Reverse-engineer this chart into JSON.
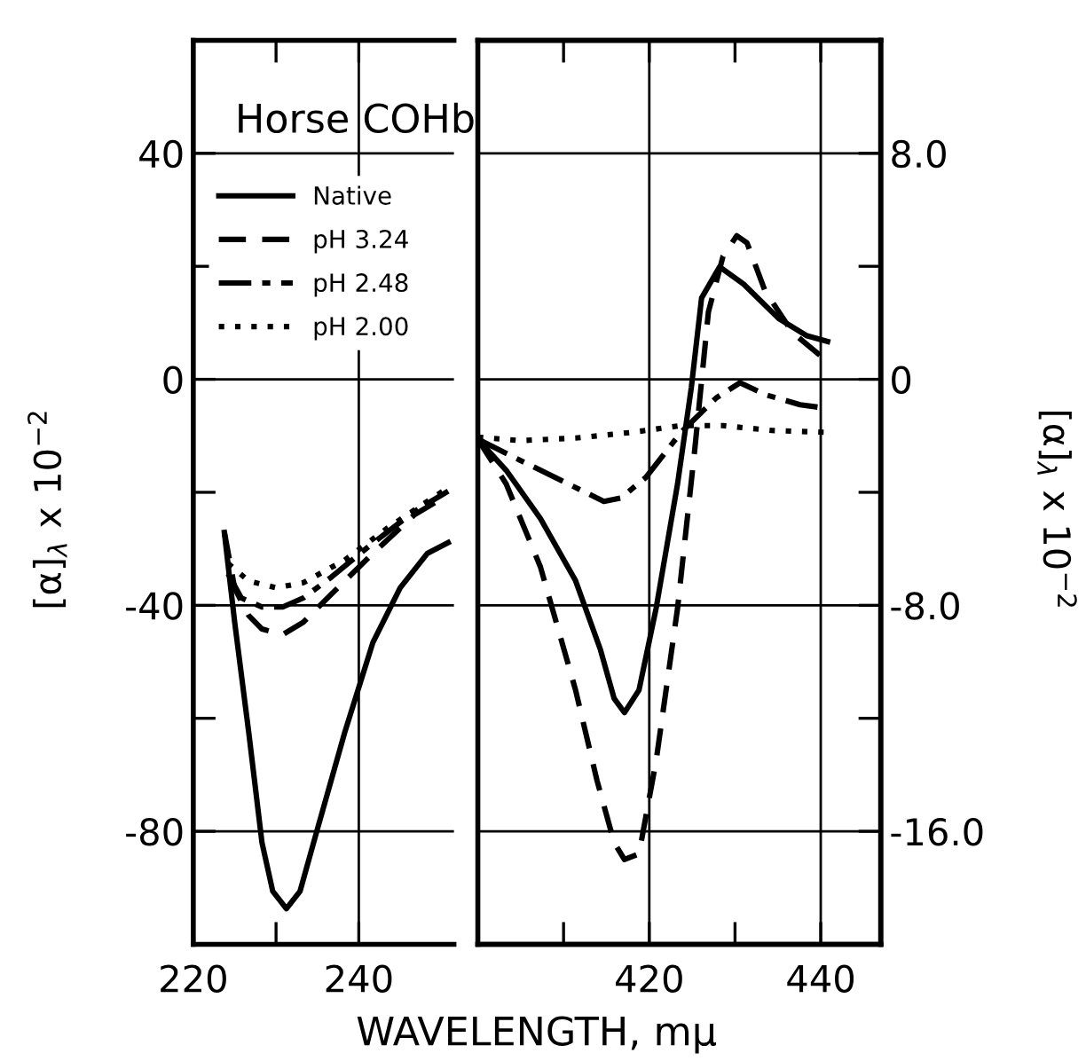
{
  "chart_data": [
    {
      "type": "line",
      "xlabel": "WAVELENGTH, mμ",
      "ylabel": "[α]$_{λ}$ x 10$^{−2}$",
      "annotations": [
        "Horse COHb"
      ],
      "legend": "top left",
      "grid": true,
      "xlim": [
        220,
        251.5
      ],
      "xticks": [
        220,
        {
          "value": 230,
          "label": null
        },
        240
      ],
      "ylim": [
        -100,
        60
      ],
      "yticks": [
        40,
        {
          "value": 20,
          "label": null
        },
        0,
        {
          "value": -20,
          "label": null
        },
        -40,
        {
          "value": -60,
          "label": null
        },
        -80
      ],
      "series": [
        {
          "name": "Native",
          "color": "#000000",
          "line_style": "solid",
          "x": [
            223.75,
            225,
            226.7,
            228.3,
            229.6,
            231.25,
            232.9,
            235,
            238.3,
            241.7,
            245,
            248.3,
            250.8
          ],
          "values": [
            -27.1,
            -43,
            -62.5,
            -82,
            -90.6,
            -93.7,
            -90.6,
            -79.6,
            -62.5,
            -46.6,
            -36.9,
            -30.8,
            -28.9
          ]
        },
        {
          "name": "pH 3.24",
          "color": "#000000",
          "line_style": "dashed",
          "x": [
            223.75,
            225,
            226.7,
            228.3,
            230.8,
            233.3,
            236.7,
            241.7,
            246.7,
            250.8
          ],
          "values": [
            -27,
            -37,
            -41.8,
            -44.2,
            -45.2,
            -43,
            -38,
            -30.8,
            -24,
            -20.4
          ]
        },
        {
          "name": "pH 2.48",
          "color": "#000000",
          "line_style": "dashdot",
          "x": [
            224.2,
            225.8,
            228.3,
            230.8,
            233.3,
            236.7,
            241.7,
            246.7,
            250.8
          ],
          "values": [
            -34.4,
            -38.7,
            -40.3,
            -40.3,
            -38.7,
            -35,
            -29,
            -23.4,
            -19.8
          ]
        },
        {
          "name": "pH 2.00",
          "color": "#000000",
          "line_style": "dotted",
          "x": [
            224.2,
            226.7,
            230,
            233.3,
            238.3,
            243.3,
            248.3,
            250.8
          ],
          "values": [
            -32.6,
            -35.7,
            -36.9,
            -36,
            -32,
            -26.5,
            -21.6,
            -19.2
          ]
        }
      ]
    },
    {
      "type": "line",
      "y2label": "[α]$_{λ}$ x 10$^{−2}$",
      "grid": true,
      "xlim": [
        400,
        447
      ],
      "xticks": [
        {
          "value": 410,
          "label": null
        },
        420,
        {
          "value": 430,
          "label": null
        },
        440
      ],
      "y2lim": [
        -20,
        12
      ],
      "y2ticks": [
        {
          "value": 8,
          "label": "8.0"
        },
        {
          "value": 4,
          "label": null
        },
        0,
        {
          "value": -4,
          "label": null
        },
        {
          "value": -8,
          "label": "-8.0"
        },
        {
          "value": -12,
          "label": null
        },
        {
          "value": -16,
          "label": "-16.0"
        }
      ],
      "series": [
        {
          "color": "#000000",
          "line_style": "solid",
          "axis": "y2",
          "x": [
            400,
            403.3,
            407.3,
            411.4,
            414.3,
            415.9,
            417.1,
            418.8,
            420.8,
            423.3,
            424.9,
            426.1,
            428.2,
            431,
            435.1,
            438.4,
            440.8
          ],
          "values": [
            -2.12,
            -3.22,
            -4.93,
            -7.13,
            -9.57,
            -11.3,
            -11.8,
            -11.0,
            -8.1,
            -3.7,
            -0.3,
            2.88,
            3.98,
            3.37,
            2.15,
            1.54,
            1.34
          ]
        },
        {
          "color": "#000000",
          "line_style": "dashed",
          "axis": "y2",
          "x": [
            400,
            403.3,
            407.3,
            411.4,
            413.9,
            415.9,
            417.1,
            418.8,
            420.8,
            423.3,
            425.3,
            426.9,
            428.6,
            430.2,
            431.4,
            433.5,
            436.7,
            440.8
          ],
          "values": [
            -2.12,
            -3.7,
            -6.64,
            -11.0,
            -14.2,
            -16.4,
            -17.0,
            -16.8,
            -13.5,
            -8.1,
            -2.5,
            2.39,
            4.35,
            5.08,
            4.83,
            3.13,
            1.66,
            0.63
          ]
        },
        {
          "color": "#000000",
          "line_style": "dashdot",
          "axis": "y2",
          "x": [
            400,
            404.9,
            410.6,
            414.7,
            416.7,
            419.6,
            423.7,
            427.8,
            430.6,
            433.5,
            437.6,
            440.8
          ],
          "values": [
            -2.12,
            -2.86,
            -3.71,
            -4.32,
            -4.2,
            -3.47,
            -1.88,
            -0.66,
            -0.12,
            -0.54,
            -0.9,
            -1.03
          ]
        },
        {
          "color": "#000000",
          "line_style": "dotted",
          "axis": "y2",
          "x": [
            400,
            404.9,
            411.4,
            417.9,
            423.7,
            428.6,
            434.3,
            440.8
          ],
          "values": [
            -2.05,
            -2.17,
            -2.08,
            -1.88,
            -1.64,
            -1.64,
            -1.81,
            -1.88
          ]
        }
      ]
    }
  ]
}
